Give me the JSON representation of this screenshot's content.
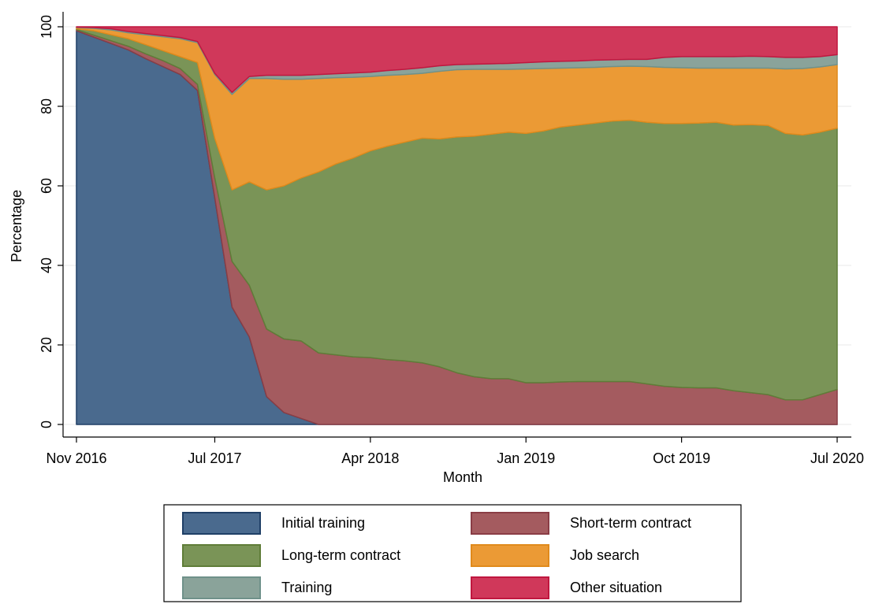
{
  "chart_data": {
    "type": "stacked_area",
    "xlabel": "Month",
    "ylabel": "Percentage",
    "x": [
      "2016-11",
      "2016-12",
      "2017-01",
      "2017-02",
      "2017-03",
      "2017-04",
      "2017-05",
      "2017-06",
      "2017-07",
      "2017-08",
      "2017-09",
      "2017-10",
      "2017-11",
      "2017-12",
      "2018-01",
      "2018-02",
      "2018-03",
      "2018-04",
      "2018-05",
      "2018-06",
      "2018-07",
      "2018-08",
      "2018-09",
      "2018-10",
      "2018-11",
      "2018-12",
      "2019-01",
      "2019-02",
      "2019-03",
      "2019-04",
      "2019-05",
      "2019-06",
      "2019-07",
      "2019-08",
      "2019-09",
      "2019-10",
      "2019-11",
      "2019-12",
      "2020-01",
      "2020-02",
      "2020-03",
      "2020-04",
      "2020-05",
      "2020-06",
      "2020-07"
    ],
    "xlim": [
      "2016-11",
      "2020-07"
    ],
    "xticks": [
      {
        "value": "2016-11",
        "label": "Nov 2016"
      },
      {
        "value": "2017-07",
        "label": "Jul 2017"
      },
      {
        "value": "2018-04",
        "label": "Apr 2018"
      },
      {
        "value": "2019-01",
        "label": "Jan 2019"
      },
      {
        "value": "2019-10",
        "label": "Oct 2019"
      },
      {
        "value": "2020-07",
        "label": "Jul 2020"
      }
    ],
    "ylim": [
      0,
      100
    ],
    "yticks": [
      0,
      20,
      40,
      60,
      80,
      100
    ],
    "grid": true,
    "series": [
      {
        "name": "Initial training",
        "color": "#4a6a8e",
        "edge": "#1f3f66",
        "values": [
          99,
          97.4,
          95.8,
          94.2,
          92,
          90,
          88,
          84,
          57,
          29.5,
          22,
          7,
          3,
          1.5,
          0,
          0,
          0,
          0,
          0,
          0,
          0,
          0,
          0,
          0,
          0,
          0,
          0,
          0,
          0,
          0,
          0,
          0,
          0,
          0,
          0,
          0,
          0,
          0,
          0,
          0,
          0,
          0,
          0,
          0,
          0
        ]
      },
      {
        "name": "Short-term contract",
        "color": "#a45b5f",
        "edge": "#8a3d45",
        "values": [
          0.3,
          0.5,
          0.7,
          0.9,
          1.2,
          1.5,
          1.5,
          1.5,
          5,
          11.5,
          13,
          17,
          18.5,
          19.5,
          18,
          17.5,
          17,
          16.8,
          16.3,
          16,
          15.5,
          14.5,
          13,
          12,
          11.5,
          11.5,
          10.5,
          10.5,
          10.7,
          10.8,
          10.8,
          10.8,
          10.8,
          10.2,
          9.6,
          9.3,
          9.2,
          9.2,
          8.5,
          8,
          7.5,
          6.2,
          6.2,
          7.5,
          8.8
        ]
      },
      {
        "name": "Long-term contract",
        "color": "#7a9457",
        "edge": "#5f7d38",
        "values": [
          0.2,
          1.1,
          1.5,
          1.9,
          2.3,
          2.5,
          3,
          5.5,
          10,
          18,
          26,
          35,
          38.5,
          41,
          45.5,
          48,
          50,
          52,
          53.7,
          55,
          56.5,
          57.3,
          59.3,
          60.5,
          61.5,
          62,
          62.7,
          63.3,
          64.1,
          64.5,
          65,
          65.5,
          65.7,
          65.8,
          66.1,
          66.4,
          66.6,
          66.8,
          66.8,
          67.4,
          67.7,
          67,
          66.6,
          66,
          65.7
        ]
      },
      {
        "name": "Job search",
        "color": "#eb9a35",
        "edge": "#e08a1c",
        "values": [
          0.3,
          0.6,
          1.2,
          1.5,
          2.5,
          3.5,
          4.5,
          5,
          16,
          24,
          26,
          28,
          26.8,
          24.8,
          23.5,
          21.7,
          20.3,
          18.7,
          17.8,
          17,
          16.3,
          17,
          16.9,
          16.8,
          16.3,
          15.8,
          16.2,
          15.7,
          14.8,
          14.4,
          14,
          13.7,
          13.6,
          14,
          14.1,
          14,
          13.8,
          13.6,
          14.3,
          14.2,
          14.4,
          16.2,
          16.7,
          16.4,
          16
        ]
      },
      {
        "name": "Training",
        "color": "#8aa39a",
        "edge": "#6f918a",
        "values": [
          0.1,
          0.2,
          0.3,
          0.3,
          0.3,
          0.3,
          0.3,
          0.3,
          0.3,
          0.5,
          0.5,
          0.8,
          1,
          1,
          1,
          1,
          1.1,
          1.1,
          1.2,
          1.3,
          1.4,
          1.4,
          1.3,
          1.3,
          1.4,
          1.5,
          1.6,
          1.7,
          1.7,
          1.7,
          1.8,
          1.7,
          1.7,
          1.8,
          2.5,
          2.8,
          2.9,
          2.9,
          2.9,
          3,
          2.9,
          2.9,
          2.8,
          2.6,
          2.5
        ]
      },
      {
        "name": "Other situation",
        "color": "#d0385a",
        "edge": "#c0173f",
        "values": [
          0.1,
          0.2,
          0.5,
          1.2,
          1.7,
          2.2,
          2.7,
          3.7,
          11.7,
          16.5,
          12.5,
          12.2,
          12.2,
          12.2,
          12,
          11.8,
          11.6,
          11.4,
          11,
          10.7,
          10.3,
          9.8,
          9.5,
          9.4,
          9.3,
          9.2,
          9,
          8.8,
          8.7,
          8.6,
          8.4,
          8.3,
          8.2,
          8.2,
          7.7,
          7.5,
          7.5,
          7.5,
          7.5,
          7.4,
          7.5,
          7.7,
          7.7,
          7.5,
          7
        ]
      }
    ]
  }
}
